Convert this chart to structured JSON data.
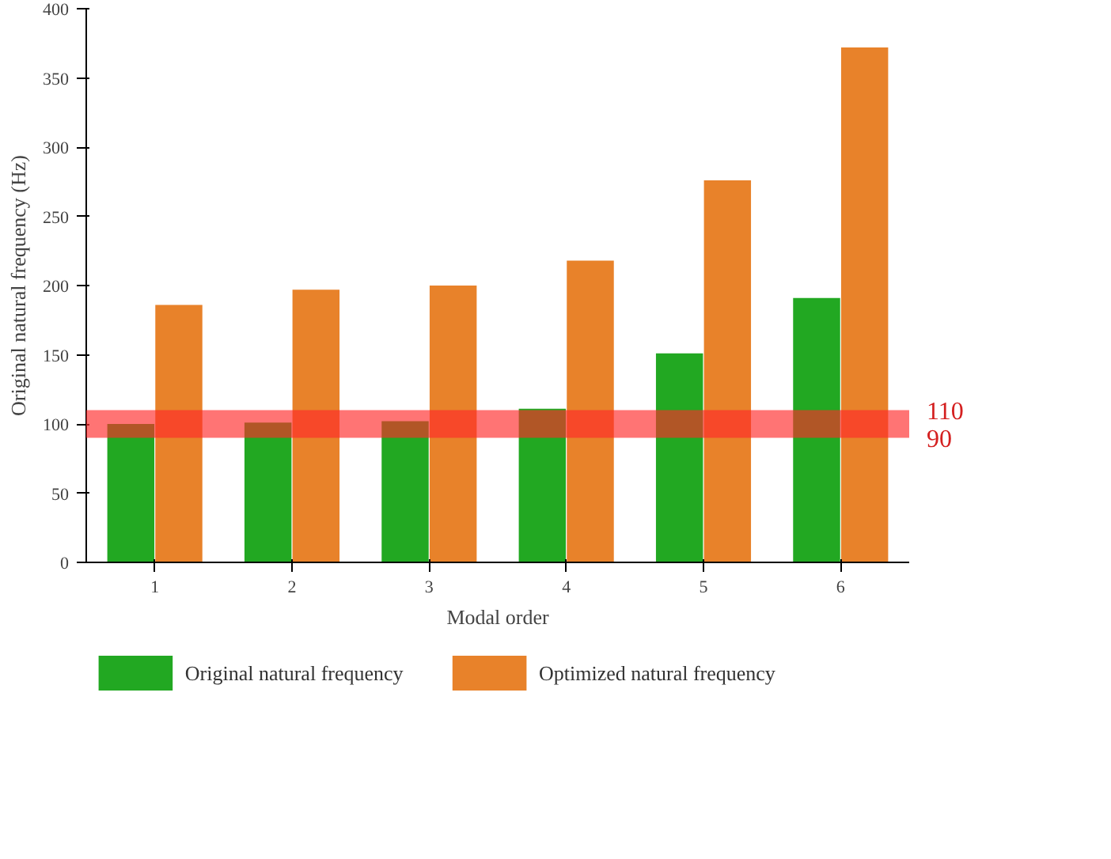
{
  "chart_data": {
    "type": "bar",
    "xlabel": "Modal order",
    "ylabel": "Original natural frequency (Hz)",
    "categories": [
      "1",
      "2",
      "3",
      "4",
      "5",
      "6"
    ],
    "series": [
      {
        "name": "Original natural frequency",
        "color": "#22a822",
        "values": [
          100,
          101,
          102,
          111,
          151,
          191
        ]
      },
      {
        "name": "Optimized natural frequency",
        "color": "#e8822a",
        "values": [
          186,
          197,
          200,
          218,
          276,
          372
        ]
      }
    ],
    "ylim": [
      0,
      400
    ],
    "yticks": [
      0,
      50,
      100,
      150,
      200,
      250,
      300,
      350,
      400
    ],
    "bands": [
      {
        "axis": "y",
        "from": 90,
        "to": 110,
        "color": "#ff2a2a"
      }
    ],
    "annotations": [
      "110",
      "90"
    ],
    "grid": false,
    "legend": "bottom"
  }
}
